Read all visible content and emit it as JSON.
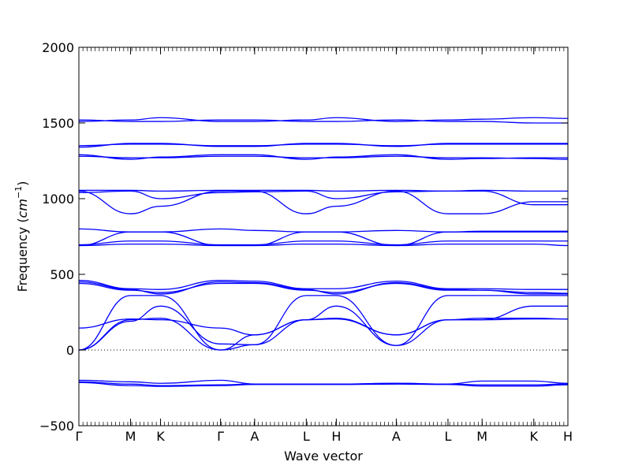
{
  "chart_data": {
    "type": "line",
    "title": "",
    "xlabel": "Wave vector",
    "ylabel_prefix": "Frequency (",
    "ylabel_unit": "cm",
    "ylabel_exp": "−1",
    "ylabel_suffix": ")",
    "ylim": [
      -500,
      2000
    ],
    "yticks": [
      -500,
      0,
      500,
      1000,
      1500,
      2000
    ],
    "ytick_labels": [
      "−500",
      "0",
      "500",
      "1000",
      "1500",
      "2000"
    ],
    "xticks": [
      {
        "label": "Γ",
        "x": 0
      },
      {
        "label": "M",
        "x": 1.0
      },
      {
        "label": "K",
        "x": 1.58
      },
      {
        "label": "Γ",
        "x": 2.74
      },
      {
        "label": "A",
        "x": 3.4
      },
      {
        "label": "L",
        "x": 4.4
      },
      {
        "label": "H",
        "x": 4.98
      },
      {
        "label": "A",
        "x": 6.14
      },
      {
        "label": "L",
        "x": 7.14
      },
      {
        "label": "M",
        "x": 7.8
      },
      {
        "label": "K",
        "x": 8.8
      },
      {
        "label": "H",
        "x": 9.46
      }
    ],
    "xlim": [
      0,
      9.46
    ],
    "zero_line": true,
    "grid": false,
    "series_color": "#0000ff",
    "series": [
      {
        "x": [
          0,
          1,
          1.58,
          2.74,
          3.4,
          4.4,
          4.98,
          6.14,
          7.14,
          7.8,
          8.8,
          9.46
        ],
        "values": [
          -200,
          -210,
          -220,
          -200,
          -225,
          -225,
          -225,
          -220,
          -225,
          -205,
          -205,
          -220
        ]
      },
      {
        "x": [
          0,
          1,
          1.58,
          2.74,
          3.4,
          4.4,
          4.98,
          6.14,
          7.14,
          7.8,
          8.8,
          9.46
        ],
        "values": [
          -210,
          -225,
          -235,
          -230,
          -225,
          -225,
          -225,
          -220,
          -225,
          -230,
          -230,
          -225
        ]
      },
      {
        "x": [
          0,
          1,
          1.58,
          2.74,
          3.4,
          4.4,
          4.98,
          6.14,
          7.14,
          7.8,
          8.8,
          9.46
        ],
        "values": [
          -215,
          -235,
          -240,
          -235,
          -228,
          -228,
          -228,
          -225,
          -228,
          -238,
          -238,
          -230
        ]
      },
      {
        "x": [
          0,
          1,
          1.58,
          2.74,
          3.4,
          4.4,
          4.98,
          6.14,
          7.14,
          7.8,
          8.8,
          9.46
        ],
        "values": [
          0,
          360,
          360,
          0,
          35,
          360,
          360,
          30,
          360,
          360,
          360,
          360
        ]
      },
      {
        "x": [
          0,
          1,
          1.58,
          2.74,
          3.4,
          4.4,
          4.98,
          6.14,
          7.14,
          7.8,
          8.8,
          9.46
        ],
        "values": [
          0,
          190,
          290,
          40,
          35,
          200,
          290,
          30,
          200,
          200,
          290,
          290
        ]
      },
      {
        "x": [
          0,
          1,
          1.58,
          2.74,
          3.4,
          4.4,
          4.98,
          6.14,
          7.14,
          7.8,
          8.8,
          9.46
        ],
        "values": [
          0,
          200,
          210,
          0,
          100,
          200,
          210,
          100,
          200,
          210,
          210,
          205
        ]
      },
      {
        "x": [
          0,
          1,
          1.58,
          2.74,
          3.4,
          4.4,
          4.98,
          6.14,
          7.14,
          7.8,
          8.8,
          9.46
        ],
        "values": [
          145,
          205,
          200,
          145,
          100,
          200,
          205,
          100,
          200,
          200,
          205,
          205
        ]
      },
      {
        "x": [
          0,
          1,
          1.58,
          2.74,
          3.4,
          4.4,
          4.98,
          6.14,
          7.14,
          7.8,
          8.8,
          9.46
        ],
        "values": [
          440,
          395,
          380,
          440,
          440,
          395,
          380,
          440,
          395,
          395,
          380,
          375
        ]
      },
      {
        "x": [
          0,
          1,
          1.58,
          2.74,
          3.4,
          4.4,
          4.98,
          6.14,
          7.14,
          7.8,
          8.8,
          9.46
        ],
        "values": [
          460,
          405,
          400,
          460,
          455,
          405,
          405,
          455,
          405,
          405,
          400,
          400
        ]
      },
      {
        "x": [
          0,
          1,
          1.58,
          2.74,
          3.4,
          4.4,
          4.98,
          6.14,
          7.14,
          7.8,
          8.8,
          9.46
        ],
        "values": [
          450,
          400,
          370,
          450,
          445,
          400,
          370,
          445,
          400,
          395,
          370,
          370
        ]
      },
      {
        "x": [
          0,
          1,
          1.58,
          2.74,
          3.4,
          4.4,
          4.98,
          6.14,
          7.14,
          7.8,
          8.8,
          9.46
        ],
        "values": [
          690,
          700,
          700,
          690,
          690,
          700,
          700,
          690,
          700,
          700,
          700,
          690
        ]
      },
      {
        "x": [
          0,
          1,
          1.58,
          2.74,
          3.4,
          4.4,
          4.98,
          6.14,
          7.14,
          7.8,
          8.8,
          9.46
        ],
        "values": [
          695,
          720,
          720,
          695,
          695,
          720,
          720,
          695,
          720,
          720,
          720,
          720
        ]
      },
      {
        "x": [
          0,
          1,
          1.58,
          2.74,
          3.4,
          4.4,
          4.98,
          6.14,
          7.14,
          7.8,
          8.8,
          9.46
        ],
        "values": [
          690,
          780,
          780,
          690,
          690,
          780,
          780,
          690,
          780,
          780,
          780,
          780
        ]
      },
      {
        "x": [
          0,
          1,
          1.58,
          2.74,
          3.4,
          4.4,
          4.98,
          6.14,
          7.14,
          7.8,
          8.8,
          9.46
        ],
        "values": [
          800,
          780,
          780,
          800,
          790,
          780,
          780,
          790,
          780,
          785,
          785,
          785
        ]
      },
      {
        "x": [
          0,
          1,
          1.58,
          2.74,
          3.4,
          4.4,
          4.98,
          6.14,
          7.14,
          7.8,
          8.8,
          9.46
        ],
        "values": [
          1050,
          900,
          950,
          1050,
          1050,
          900,
          950,
          1050,
          900,
          900,
          980,
          980
        ]
      },
      {
        "x": [
          0,
          1,
          1.58,
          2.74,
          3.4,
          4.4,
          4.98,
          6.14,
          7.14,
          7.8,
          8.8,
          9.46
        ],
        "values": [
          1040,
          1050,
          1000,
          1040,
          1045,
          1050,
          1000,
          1045,
          1050,
          1050,
          960,
          960
        ]
      },
      {
        "x": [
          0,
          1,
          1.58,
          2.74,
          3.4,
          4.4,
          4.98,
          6.14,
          7.14,
          7.8,
          8.8,
          9.46
        ],
        "values": [
          1055,
          1055,
          1050,
          1055,
          1055,
          1055,
          1050,
          1055,
          1050,
          1055,
          1050,
          1050
        ]
      },
      {
        "x": [
          0,
          1,
          1.58,
          2.74,
          3.4,
          4.4,
          4.98,
          6.14,
          7.14,
          7.8,
          8.8,
          9.46
        ],
        "values": [
          1280,
          1270,
          1270,
          1280,
          1280,
          1270,
          1270,
          1280,
          1270,
          1270,
          1265,
          1260
        ]
      },
      {
        "x": [
          0,
          1,
          1.58,
          2.74,
          3.4,
          4.4,
          4.98,
          6.14,
          7.14,
          7.8,
          8.8,
          9.46
        ],
        "values": [
          1290,
          1260,
          1275,
          1290,
          1290,
          1260,
          1275,
          1290,
          1260,
          1265,
          1270,
          1270
        ]
      },
      {
        "x": [
          0,
          1,
          1.58,
          2.74,
          3.4,
          4.4,
          4.98,
          6.14,
          7.14,
          7.8,
          8.8,
          9.46
        ],
        "values": [
          1340,
          1365,
          1365,
          1345,
          1345,
          1365,
          1365,
          1345,
          1365,
          1365,
          1365,
          1365
        ]
      },
      {
        "x": [
          0,
          1,
          1.58,
          2.74,
          3.4,
          4.4,
          4.98,
          6.14,
          7.14,
          7.8,
          8.8,
          9.46
        ],
        "values": [
          1350,
          1360,
          1360,
          1350,
          1350,
          1360,
          1360,
          1350,
          1360,
          1360,
          1360,
          1360
        ]
      },
      {
        "x": [
          0,
          1,
          1.58,
          2.74,
          3.4,
          4.4,
          4.98,
          6.14,
          7.14,
          7.8,
          8.8,
          9.46
        ],
        "values": [
          1510,
          1520,
          1535,
          1510,
          1510,
          1520,
          1535,
          1510,
          1520,
          1525,
          1535,
          1530
        ]
      },
      {
        "x": [
          0,
          1,
          1.58,
          2.74,
          3.4,
          4.4,
          4.98,
          6.14,
          7.14,
          7.8,
          8.8,
          9.46
        ],
        "values": [
          1520,
          1510,
          1510,
          1520,
          1520,
          1510,
          1510,
          1520,
          1510,
          1510,
          1500,
          1500
        ]
      }
    ]
  }
}
